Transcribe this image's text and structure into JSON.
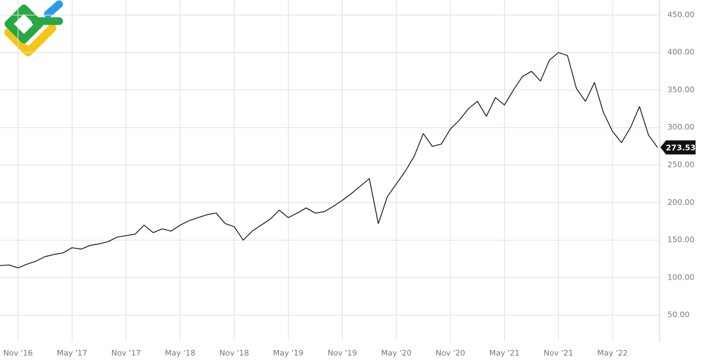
{
  "chart_data": {
    "type": "line",
    "x": [
      "2016-09",
      "2016-10",
      "2016-11",
      "2016-12",
      "2017-01",
      "2017-02",
      "2017-03",
      "2017-04",
      "2017-05",
      "2017-06",
      "2017-07",
      "2017-08",
      "2017-09",
      "2017-10",
      "2017-11",
      "2017-12",
      "2018-01",
      "2018-02",
      "2018-03",
      "2018-04",
      "2018-05",
      "2018-06",
      "2018-07",
      "2018-08",
      "2018-09",
      "2018-10",
      "2018-11",
      "2018-12",
      "2019-01",
      "2019-02",
      "2019-03",
      "2019-04",
      "2019-05",
      "2019-06",
      "2019-07",
      "2019-08",
      "2019-09",
      "2019-10",
      "2019-11",
      "2019-12",
      "2020-01",
      "2020-02",
      "2020-03",
      "2020-04",
      "2020-05",
      "2020-06",
      "2020-07",
      "2020-08",
      "2020-09",
      "2020-10",
      "2020-11",
      "2020-12",
      "2021-01",
      "2021-02",
      "2021-03",
      "2021-04",
      "2021-05",
      "2021-06",
      "2021-07",
      "2021-08",
      "2021-09",
      "2021-10",
      "2021-11",
      "2021-12",
      "2022-01",
      "2022-02",
      "2022-03",
      "2022-04",
      "2022-05",
      "2022-06",
      "2022-07",
      "2022-08",
      "2022-09",
      "2022-10"
    ],
    "values": [
      116,
      117,
      113,
      118,
      122,
      128,
      131,
      133,
      140,
      138,
      143,
      145,
      148,
      154,
      156,
      158,
      170,
      160,
      165,
      162,
      170,
      176,
      180,
      184,
      186,
      172,
      168,
      150,
      162,
      170,
      178,
      190,
      180,
      186,
      193,
      186,
      188,
      195,
      203,
      212,
      222,
      232,
      172,
      208,
      225,
      242,
      262,
      292,
      275,
      278,
      298,
      310,
      325,
      335,
      315,
      340,
      330,
      350,
      368,
      375,
      362,
      390,
      400,
      396,
      352,
      335,
      360,
      320,
      295,
      280,
      300,
      328,
      290,
      273.53
    ],
    "color": "#111111",
    "xlim": [
      "2016-09",
      "2022-10"
    ],
    "xticks": [
      {
        "value": "2016-11",
        "label": "Nov '16"
      },
      {
        "value": "2017-05",
        "label": "May '17"
      },
      {
        "value": "2017-11",
        "label": "Nov '17"
      },
      {
        "value": "2018-05",
        "label": "May '18"
      },
      {
        "value": "2018-11",
        "label": "Nov '18"
      },
      {
        "value": "2019-05",
        "label": "May '19"
      },
      {
        "value": "2019-11",
        "label": "Nov '19"
      },
      {
        "value": "2020-05",
        "label": "May '20"
      },
      {
        "value": "2020-11",
        "label": "Nov '20"
      },
      {
        "value": "2021-05",
        "label": "May '21"
      },
      {
        "value": "2021-11",
        "label": "Nov '21"
      },
      {
        "value": "2022-05",
        "label": "May '22"
      }
    ],
    "ylim": [
      15,
      470
    ],
    "yticks": [
      {
        "value": 50,
        "label": "50.00"
      },
      {
        "value": 100,
        "label": "100.00"
      },
      {
        "value": 150,
        "label": "150.00"
      },
      {
        "value": 200,
        "label": "200.00"
      },
      {
        "value": 250,
        "label": "250.00"
      },
      {
        "value": 300,
        "label": "300.00"
      },
      {
        "value": 350,
        "label": "350.00"
      },
      {
        "value": 400,
        "label": "400.00"
      },
      {
        "value": 450,
        "label": "450.00"
      }
    ],
    "grid": true
  }
}
